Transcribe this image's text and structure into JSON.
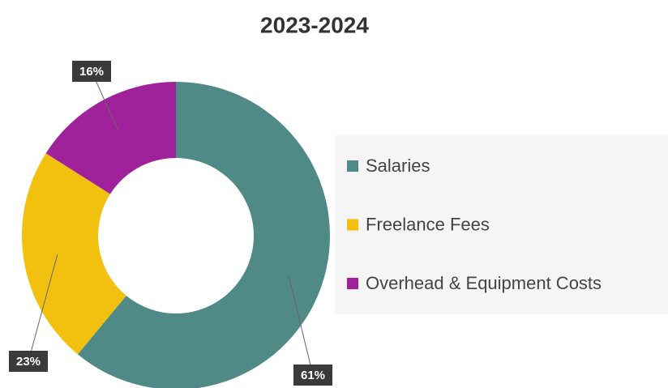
{
  "chart_data": {
    "type": "donut",
    "title": "2023-2024",
    "categories": [
      "Salaries",
      "Freelance Fees",
      "Overhead & Equipment Costs"
    ],
    "values": [
      61,
      23,
      16
    ],
    "value_labels": [
      "61%",
      "23%",
      "16%"
    ],
    "colors": [
      "#4f8a86",
      "#f2c10f",
      "#a0229a"
    ],
    "legend": "right"
  }
}
